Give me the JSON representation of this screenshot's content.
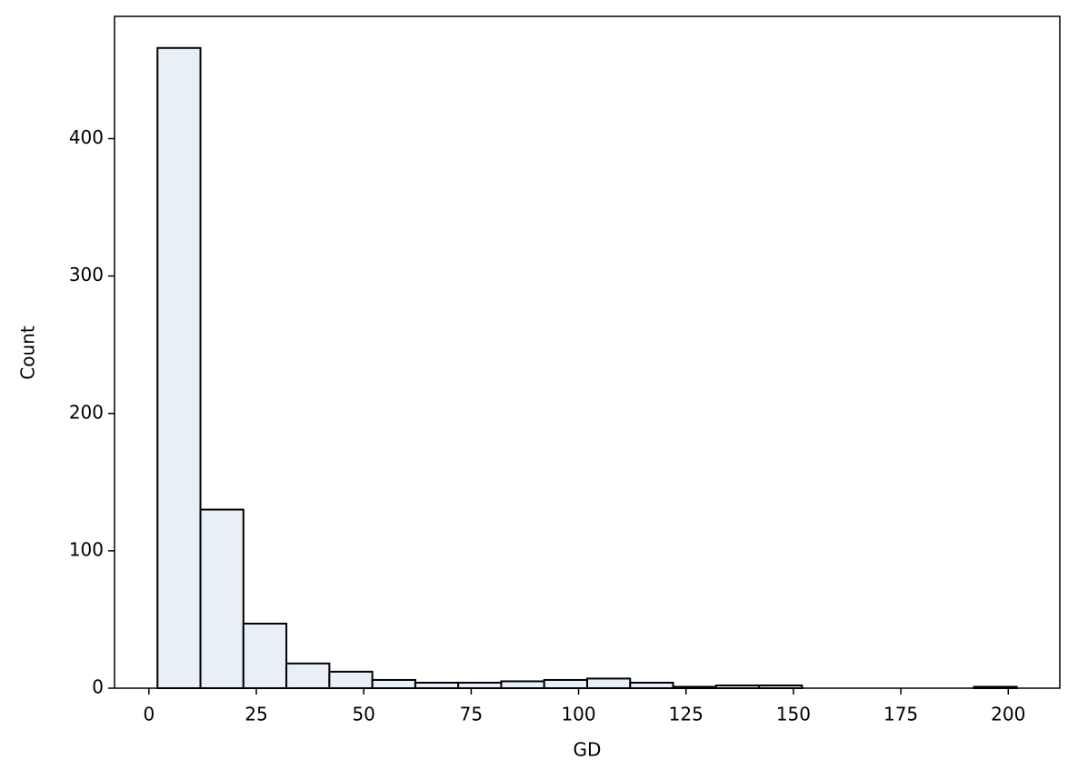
{
  "chart_data": {
    "type": "histogram",
    "x_label": "GD",
    "y_label": "Count",
    "bins": [
      2,
      12,
      22,
      32,
      42,
      52,
      62,
      72,
      82,
      92,
      102,
      112,
      122,
      132,
      142,
      152,
      162,
      172,
      182,
      192,
      202
    ],
    "counts": [
      466,
      130,
      47,
      18,
      12,
      6,
      4,
      4,
      5,
      6,
      7,
      4,
      1,
      2,
      2,
      0,
      0,
      0,
      0,
      1
    ],
    "color": "#e8eff7",
    "edgecolor": "#000000",
    "xlim": [
      -8,
      212
    ],
    "ylim": [
      0,
      489
    ],
    "xticks": [
      0,
      25,
      50,
      75,
      100,
      125,
      150,
      175,
      200
    ],
    "yticks": [
      0,
      100,
      200,
      300,
      400
    ]
  }
}
